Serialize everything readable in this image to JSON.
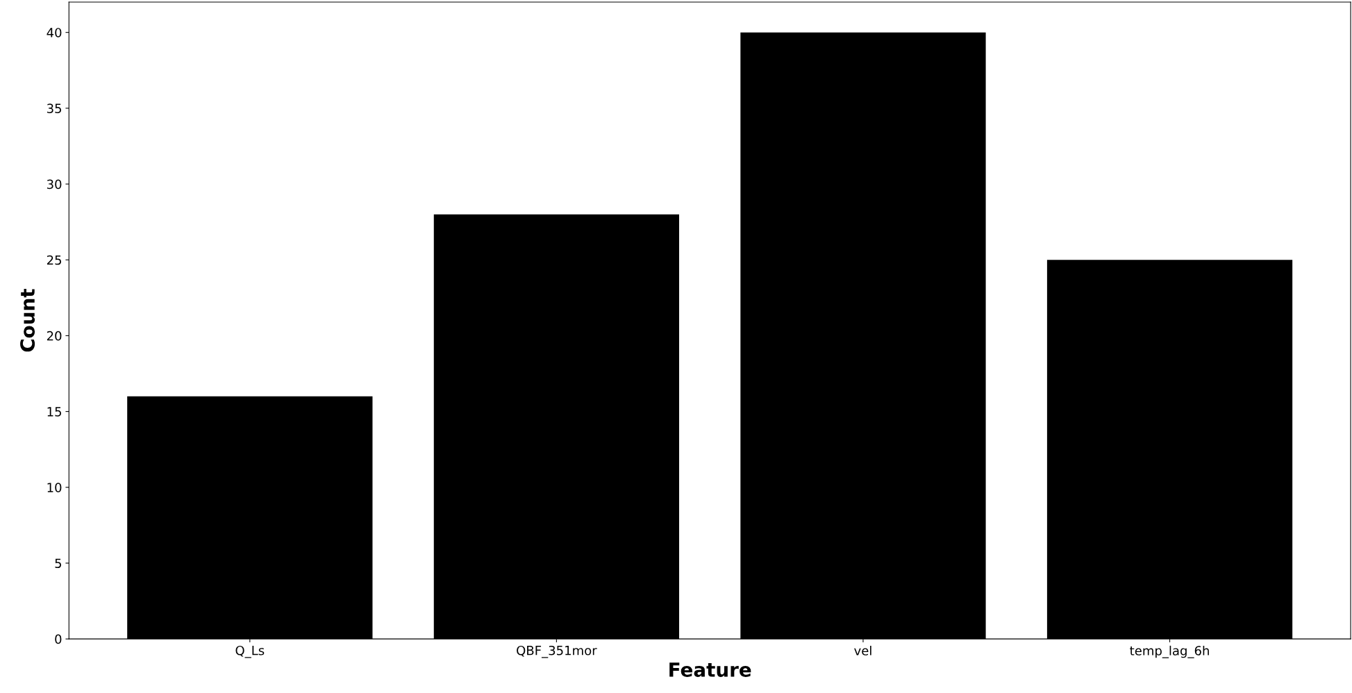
{
  "chart_data": {
    "type": "bar",
    "xlabel": "Feature",
    "ylabel": "Count",
    "categories": [
      "Q_Ls",
      "QBF_351mor",
      "vel",
      "temp_lag_6h"
    ],
    "values": [
      16,
      28,
      40,
      25
    ],
    "color": "#000000",
    "ylim": [
      0,
      42
    ],
    "yticks": [
      0,
      5,
      10,
      15,
      20,
      25,
      30,
      35,
      40
    ],
    "grid": false
  }
}
